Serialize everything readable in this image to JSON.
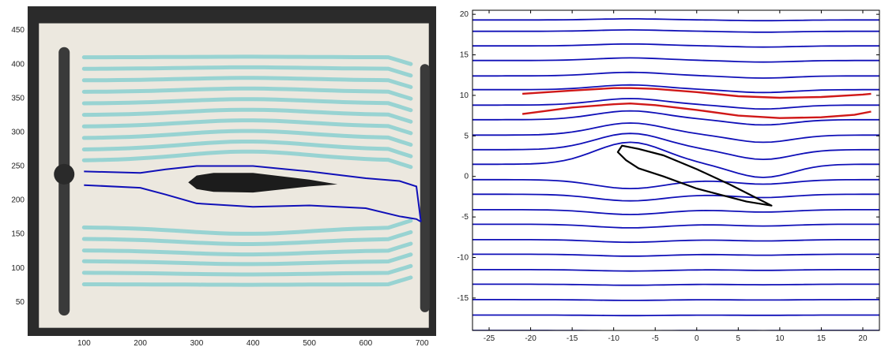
{
  "colors": {
    "background": "#ffffff",
    "photo_frame": "#2b2b2b",
    "tank": "#ece8df",
    "dye": "#8fd0d0",
    "streamline": "#1010b8",
    "highlight": "#d01818",
    "airfoil_photo": "#1c1c1c",
    "airfoil_outline": "#000000"
  },
  "chart_data": [
    {
      "type": "image",
      "description": "flow-visualization photo with overlaid streamline boundary",
      "x_ticks": [
        100,
        200,
        300,
        400,
        500,
        600,
        700
      ],
      "y_ticks": [
        50,
        100,
        150,
        200,
        250,
        300,
        350,
        400,
        450
      ],
      "xlim": [
        0,
        725
      ],
      "ylim": [
        0,
        485
      ],
      "series": [
        {
          "color": "#1010b8",
          "x": [
            100,
            200,
            245,
            300,
            400,
            500,
            600,
            660,
            690,
            698
          ],
          "y": [
            242,
            240,
            245,
            250,
            250,
            242,
            232,
            228,
            220,
            168
          ]
        },
        {
          "color": "#1010b8",
          "x": [
            100,
            200,
            245,
            300,
            400,
            500,
            600,
            660,
            690,
            698
          ],
          "y": [
            222,
            218,
            208,
            195,
            190,
            192,
            188,
            176,
            172,
            168
          ]
        }
      ],
      "airfoil": {
        "x": [
          285,
          300,
          330,
          400,
          500,
          550,
          500,
          400,
          330,
          300,
          285
        ],
        "y": [
          226,
          236,
          240,
          240,
          230,
          223,
          220,
          211,
          212,
          216,
          226
        ]
      }
    },
    {
      "type": "line",
      "x_ticks": [
        -25,
        -20,
        -15,
        -10,
        -5,
        0,
        5,
        10,
        15,
        20
      ],
      "y_ticks": [
        -15,
        -10,
        -5,
        0,
        5,
        10,
        15,
        20
      ],
      "xlim": [
        -27,
        22
      ],
      "ylim": [
        -19,
        20.5
      ],
      "grid": false,
      "streamline_y_upstream": [
        19.3,
        17.9,
        16.1,
        14.3,
        12.4,
        10.7,
        8.8,
        7.0,
        5.1,
        3.3,
        1.5,
        -0.4,
        -2.2,
        -4.1,
        -5.9,
        -7.8,
        -9.6,
        -11.5,
        -13.3,
        -15.2,
        -17.1,
        -19.0
      ],
      "highlighted_streamlines": [
        {
          "color": "#d01818",
          "x": [
            -21,
            -15,
            -10,
            -8,
            -5,
            0,
            5,
            10,
            15,
            20,
            21
          ],
          "y": [
            10.2,
            10.6,
            10.9,
            10.9,
            10.8,
            10.4,
            9.9,
            9.7,
            9.8,
            10.1,
            10.2
          ]
        },
        {
          "color": "#d01818",
          "x": [
            -21,
            -15,
            -10,
            -8,
            -5,
            0,
            5,
            10,
            15,
            19,
            21
          ],
          "y": [
            7.7,
            8.5,
            8.9,
            9.0,
            8.8,
            8.2,
            7.5,
            7.2,
            7.3,
            7.6,
            8.0
          ]
        }
      ],
      "airfoil": {
        "x": [
          -8.5,
          -9.5,
          -9.0,
          -7.0,
          -4.0,
          0.0,
          4.0,
          9.0,
          6.0,
          0.0,
          -4.0,
          -7.0,
          -8.5
        ],
        "y": [
          2.0,
          3.0,
          3.8,
          3.4,
          2.6,
          0.9,
          -1.0,
          -3.6,
          -3.1,
          -1.5,
          0.0,
          1.0,
          2.0
        ]
      }
    }
  ]
}
